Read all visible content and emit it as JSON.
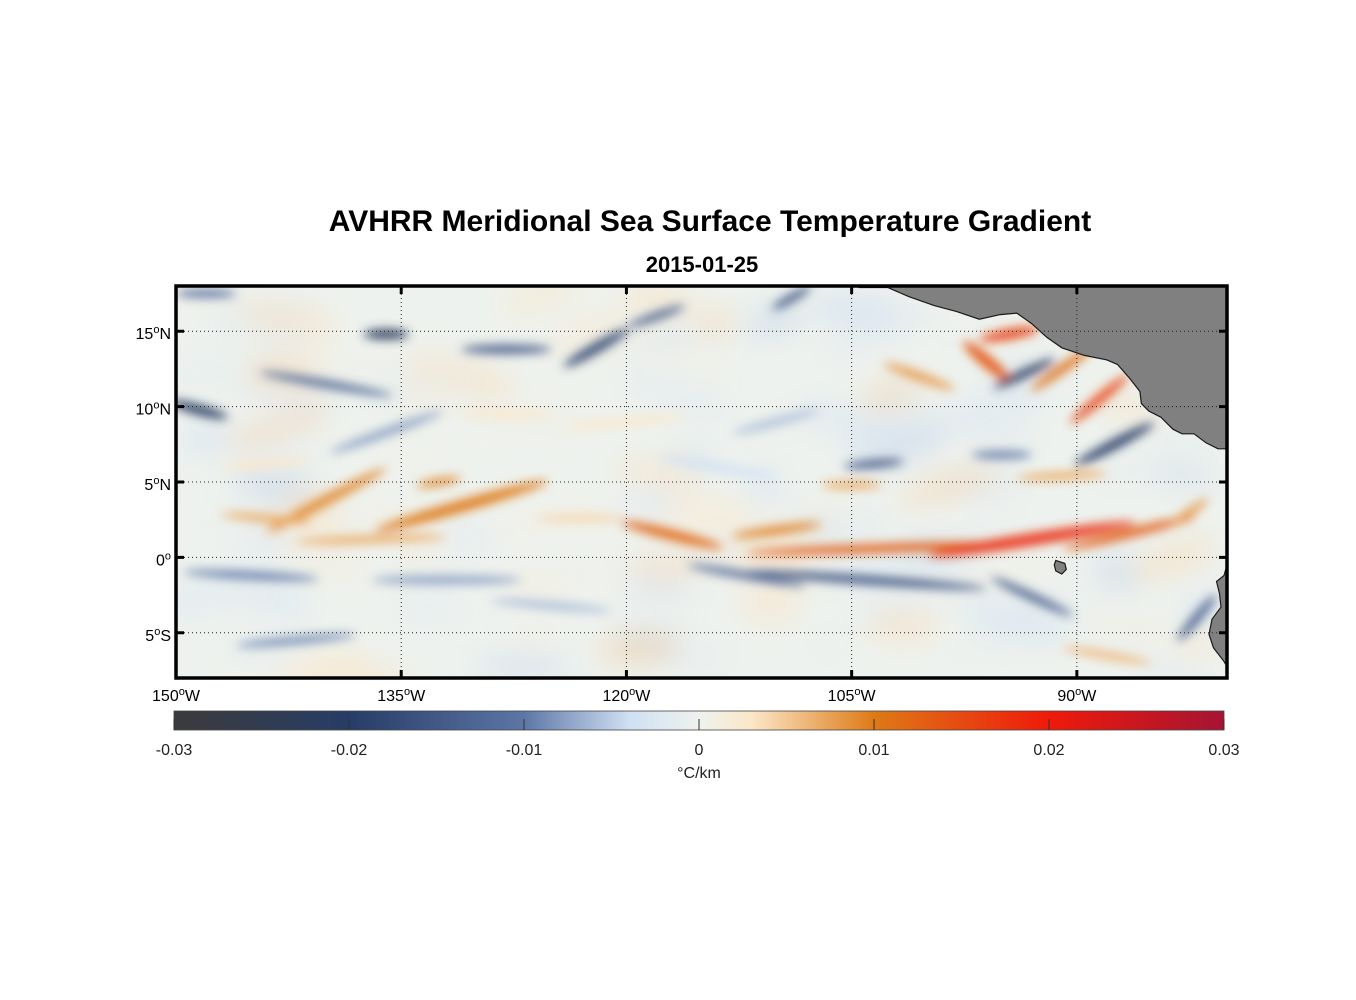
{
  "title": "AVHRR Meridional Sea Surface Temperature Gradient",
  "subtitle": "2015-01-25",
  "map": {
    "lon_range": [
      -150,
      -80
    ],
    "lat_range": [
      -8,
      18
    ],
    "x_ticks": [
      {
        "value": -150,
        "deg": "150",
        "hemi": "W"
      },
      {
        "value": -135,
        "deg": "135",
        "hemi": "W"
      },
      {
        "value": -120,
        "deg": "120",
        "hemi": "W"
      },
      {
        "value": -105,
        "deg": "105",
        "hemi": "W"
      },
      {
        "value": -90,
        "deg": "90",
        "hemi": "W"
      }
    ],
    "y_ticks": [
      {
        "value": 15,
        "deg": "15",
        "hemi": "N"
      },
      {
        "value": 10,
        "deg": "10",
        "hemi": "N"
      },
      {
        "value": 5,
        "deg": "5",
        "hemi": "N"
      },
      {
        "value": 0,
        "deg": "0",
        "hemi": ""
      },
      {
        "value": -5,
        "deg": "5",
        "hemi": "S"
      }
    ],
    "grid": "dotted",
    "land_color": "#808080",
    "features": [
      {
        "lon": -131,
        "lat": 3.4,
        "len": 12,
        "wid": 0.8,
        "ang": 16,
        "val": 0.01
      },
      {
        "lon": -140,
        "lat": 3.8,
        "len": 9,
        "wid": 0.7,
        "ang": 28,
        "val": 0.009
      },
      {
        "lon": -144,
        "lat": 2.6,
        "len": 6,
        "wid": 0.5,
        "ang": -5,
        "val": 0.007
      },
      {
        "lon": -137,
        "lat": 1.2,
        "len": 10,
        "wid": 0.5,
        "ang": 2,
        "val": 0.007
      },
      {
        "lon": -132.5,
        "lat": 5.0,
        "len": 3,
        "wid": 0.5,
        "ang": 10,
        "val": 0.009
      },
      {
        "lon": -117,
        "lat": 1.5,
        "len": 7,
        "wid": 0.7,
        "ang": -14,
        "val": 0.012
      },
      {
        "lon": -110,
        "lat": 1.8,
        "len": 6,
        "wid": 0.5,
        "ang": 8,
        "val": 0.01
      },
      {
        "lon": -103,
        "lat": 0.6,
        "len": 18,
        "wid": 0.6,
        "ang": 2,
        "val": 0.013
      },
      {
        "lon": -93,
        "lat": 1.2,
        "len": 14,
        "wid": 0.8,
        "ang": 9,
        "val": 0.018
      },
      {
        "lon": -86.5,
        "lat": 1.6,
        "len": 9,
        "wid": 0.6,
        "ang": 14,
        "val": 0.013
      },
      {
        "lon": -96,
        "lat": 13,
        "len": 4,
        "wid": 0.8,
        "ang": -40,
        "val": 0.014
      },
      {
        "lon": -94.5,
        "lat": 14.8,
        "len": 4,
        "wid": 0.7,
        "ang": 10,
        "val": 0.016
      },
      {
        "lon": -91,
        "lat": 12.5,
        "len": 5,
        "wid": 0.6,
        "ang": 35,
        "val": 0.011
      },
      {
        "lon": -88.5,
        "lat": 10.5,
        "len": 5,
        "wid": 0.6,
        "ang": 40,
        "val": 0.016
      },
      {
        "lon": -100.5,
        "lat": 12,
        "len": 5,
        "wid": 0.6,
        "ang": -20,
        "val": 0.008
      },
      {
        "lon": -91,
        "lat": 5.4,
        "len": 6,
        "wid": 0.4,
        "ang": 3,
        "val": 0.007
      },
      {
        "lon": -105,
        "lat": 4.8,
        "len": 4,
        "wid": 0.4,
        "ang": 0,
        "val": 0.007
      },
      {
        "lon": -123,
        "lat": 2.6,
        "len": 6,
        "wid": 0.4,
        "ang": 0,
        "val": 0.004
      },
      {
        "lon": -104,
        "lat": -1.5,
        "len": 16,
        "wid": 0.6,
        "ang": -4,
        "val": -0.016
      },
      {
        "lon": -112,
        "lat": -1.2,
        "len": 8,
        "wid": 0.5,
        "ang": -10,
        "val": -0.012
      },
      {
        "lon": -93,
        "lat": -2.6,
        "len": 6,
        "wid": 0.5,
        "ang": -25,
        "val": -0.015
      },
      {
        "lon": -87.5,
        "lat": 7.5,
        "len": 6,
        "wid": 0.7,
        "ang": 28,
        "val": -0.02
      },
      {
        "lon": -93.5,
        "lat": 12.2,
        "len": 4.5,
        "wid": 0.6,
        "ang": 25,
        "val": -0.022
      },
      {
        "lon": -145,
        "lat": -1.2,
        "len": 9,
        "wid": 0.5,
        "ang": -3,
        "val": -0.01
      },
      {
        "lon": -132,
        "lat": -1.5,
        "len": 10,
        "wid": 0.5,
        "ang": 0,
        "val": -0.008
      },
      {
        "lon": -148.5,
        "lat": 9.8,
        "len": 4,
        "wid": 0.7,
        "ang": -15,
        "val": -0.021
      },
      {
        "lon": -140,
        "lat": 11.5,
        "len": 9,
        "wid": 0.5,
        "ang": -10,
        "val": -0.013
      },
      {
        "lon": -136,
        "lat": 14.8,
        "len": 3,
        "wid": 0.7,
        "ang": 0,
        "val": -0.022
      },
      {
        "lon": -128,
        "lat": 13.8,
        "len": 6,
        "wid": 0.6,
        "ang": 0,
        "val": -0.015
      },
      {
        "lon": -122,
        "lat": 13.9,
        "len": 5,
        "wid": 0.7,
        "ang": 30,
        "val": -0.018
      },
      {
        "lon": -118,
        "lat": 16,
        "len": 4,
        "wid": 0.5,
        "ang": 20,
        "val": -0.014
      },
      {
        "lon": -109,
        "lat": 17.2,
        "len": 3,
        "wid": 0.4,
        "ang": 30,
        "val": -0.016
      },
      {
        "lon": -148,
        "lat": 17.5,
        "len": 4,
        "wid": 0.4,
        "ang": 0,
        "val": -0.012
      },
      {
        "lon": -136,
        "lat": 8.3,
        "len": 8,
        "wid": 0.4,
        "ang": 20,
        "val": -0.008
      },
      {
        "lon": -142,
        "lat": -5.5,
        "len": 8,
        "wid": 0.4,
        "ang": 5,
        "val": -0.009
      },
      {
        "lon": -125,
        "lat": -3.2,
        "len": 8,
        "wid": 0.4,
        "ang": -5,
        "val": -0.006
      },
      {
        "lon": -103.5,
        "lat": 6.2,
        "len": 4,
        "wid": 0.4,
        "ang": 5,
        "val": -0.016
      },
      {
        "lon": -95,
        "lat": 6.8,
        "len": 4,
        "wid": 0.4,
        "ang": 0,
        "val": -0.01
      },
      {
        "lon": -110,
        "lat": 9,
        "len": 6,
        "wid": 0.4,
        "ang": 15,
        "val": -0.006
      },
      {
        "lon": -114,
        "lat": 6,
        "len": 8,
        "wid": 0.4,
        "ang": -10,
        "val": -0.004
      },
      {
        "lon": -120,
        "lat": 9,
        "len": 8,
        "wid": 0.4,
        "ang": 5,
        "val": 0.003
      },
      {
        "lon": -82,
        "lat": -4,
        "len": 4,
        "wid": 0.6,
        "ang": 50,
        "val": -0.014
      },
      {
        "lon": -82.5,
        "lat": 3,
        "len": 3,
        "wid": 0.5,
        "ang": 35,
        "val": 0.008
      },
      {
        "lon": -88,
        "lat": -6.5,
        "len": 6,
        "wid": 0.4,
        "ang": -10,
        "val": 0.006
      },
      {
        "lon": -144,
        "lat": 6.2,
        "len": 6,
        "wid": 0.4,
        "ang": 5,
        "val": 0.003
      },
      {
        "lon": -128,
        "lat": 9.5,
        "len": 6,
        "wid": 0.4,
        "ang": 0,
        "val": 0.003
      }
    ]
  },
  "colorbar": {
    "range": [
      -0.03,
      0.03
    ],
    "ticks": [
      "-0.03",
      "-0.02",
      "-0.01",
      "0",
      "0.01",
      "0.02",
      "0.03"
    ],
    "unit": "°C/km",
    "stops": [
      {
        "v": -0.03,
        "c": "#3b3b3b"
      },
      {
        "v": -0.02,
        "c": "#273c66"
      },
      {
        "v": -0.01,
        "c": "#5d76a6"
      },
      {
        "v": -0.004,
        "c": "#cfe0f3"
      },
      {
        "v": 0.0,
        "c": "#eef2ee"
      },
      {
        "v": 0.003,
        "c": "#fbe7c9"
      },
      {
        "v": 0.01,
        "c": "#de7a17"
      },
      {
        "v": 0.02,
        "c": "#ef1a0a"
      },
      {
        "v": 0.03,
        "c": "#a51433"
      }
    ]
  }
}
